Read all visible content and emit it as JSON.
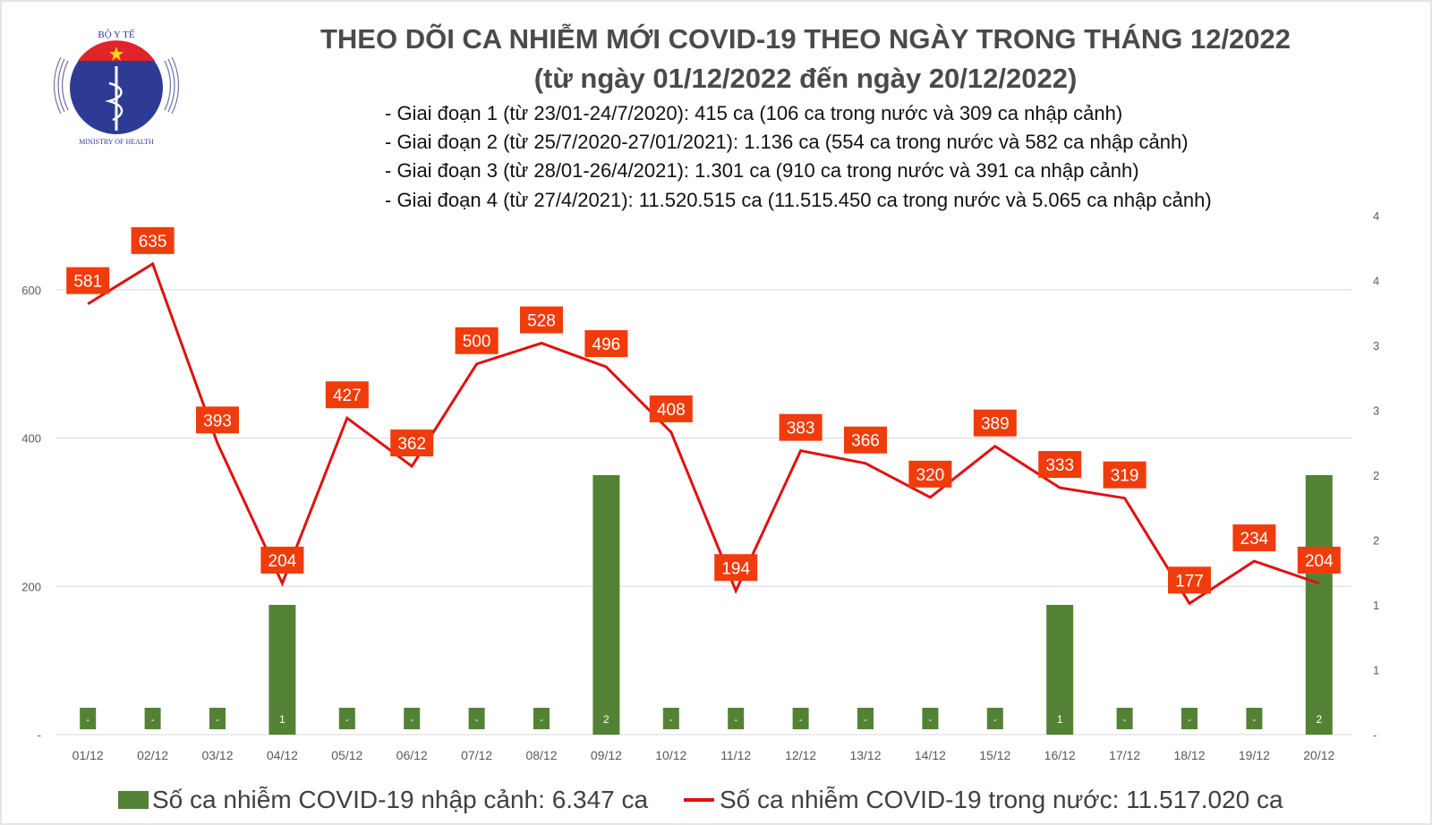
{
  "logo": {
    "top_text": "BỘ Y TẾ",
    "bottom_text": "MINISTRY OF HEALTH"
  },
  "title_line1": "THEO DÕI CA NHIỄM MỚI COVID-19 THEO NGÀY TRONG THÁNG 12/2022",
  "title_line2": "(từ ngày 01/12/2022 đến ngày 20/12/2022)",
  "notes": [
    "- Giai đoạn 1 (từ 23/01-24/7/2020): 415 ca (106 ca trong nước và 309 ca nhập cảnh)",
    "- Giai đoạn 2 (từ 25/7/2020-27/01/2021): 1.136 ca (554 ca trong nước và 582 ca nhập cảnh)",
    "- Giai đoạn 3 (từ 28/01-26/4/2021): 1.301 ca (910 ca trong nước và 391 ca nhập cảnh)",
    "- Giai đoạn 4 (từ 27/4/2021): 11.520.515 ca (11.515.450 ca trong nước và 5.065 ca nhập cảnh)"
  ],
  "chart_data": {
    "type": "bar+line",
    "categories": [
      "01/12",
      "02/12",
      "03/12",
      "04/12",
      "05/12",
      "06/12",
      "07/12",
      "08/12",
      "09/12",
      "10/12",
      "11/12",
      "12/12",
      "13/12",
      "14/12",
      "15/12",
      "16/12",
      "17/12",
      "18/12",
      "19/12",
      "20/12"
    ],
    "series": [
      {
        "name": "Số ca nhiễm COVID-19 nhập cảnh: 6.347 ca",
        "type": "bar",
        "axis": "right",
        "color": "#548235",
        "values": [
          0,
          0,
          0,
          1,
          0,
          0,
          0,
          0,
          2,
          0,
          0,
          0,
          0,
          0,
          0,
          1,
          0,
          0,
          0,
          2
        ]
      },
      {
        "name": "Số ca nhiễm COVID-19 trong nước: 11.517.020 ca",
        "type": "line",
        "axis": "left",
        "color": "#e01010",
        "label_color": "#f03c0c",
        "values": [
          581,
          635,
          393,
          204,
          427,
          362,
          500,
          528,
          496,
          408,
          194,
          383,
          366,
          320,
          389,
          333,
          319,
          177,
          234,
          204
        ]
      }
    ],
    "left_axis": {
      "ylim": [
        0,
        700
      ],
      "ticks": [
        0,
        200,
        400,
        600
      ],
      "tick_labels": [
        "-",
        "200",
        "400",
        "600"
      ]
    },
    "right_axis": {
      "ylim": [
        0,
        4
      ],
      "ticks": [
        0,
        0.5,
        1,
        1.5,
        2,
        2.5,
        3,
        3.5,
        4
      ],
      "tick_labels": [
        "-",
        "1",
        "1",
        "2",
        "2",
        "3",
        "3",
        "4",
        "4"
      ]
    },
    "grid": true,
    "legend_position": "bottom"
  }
}
